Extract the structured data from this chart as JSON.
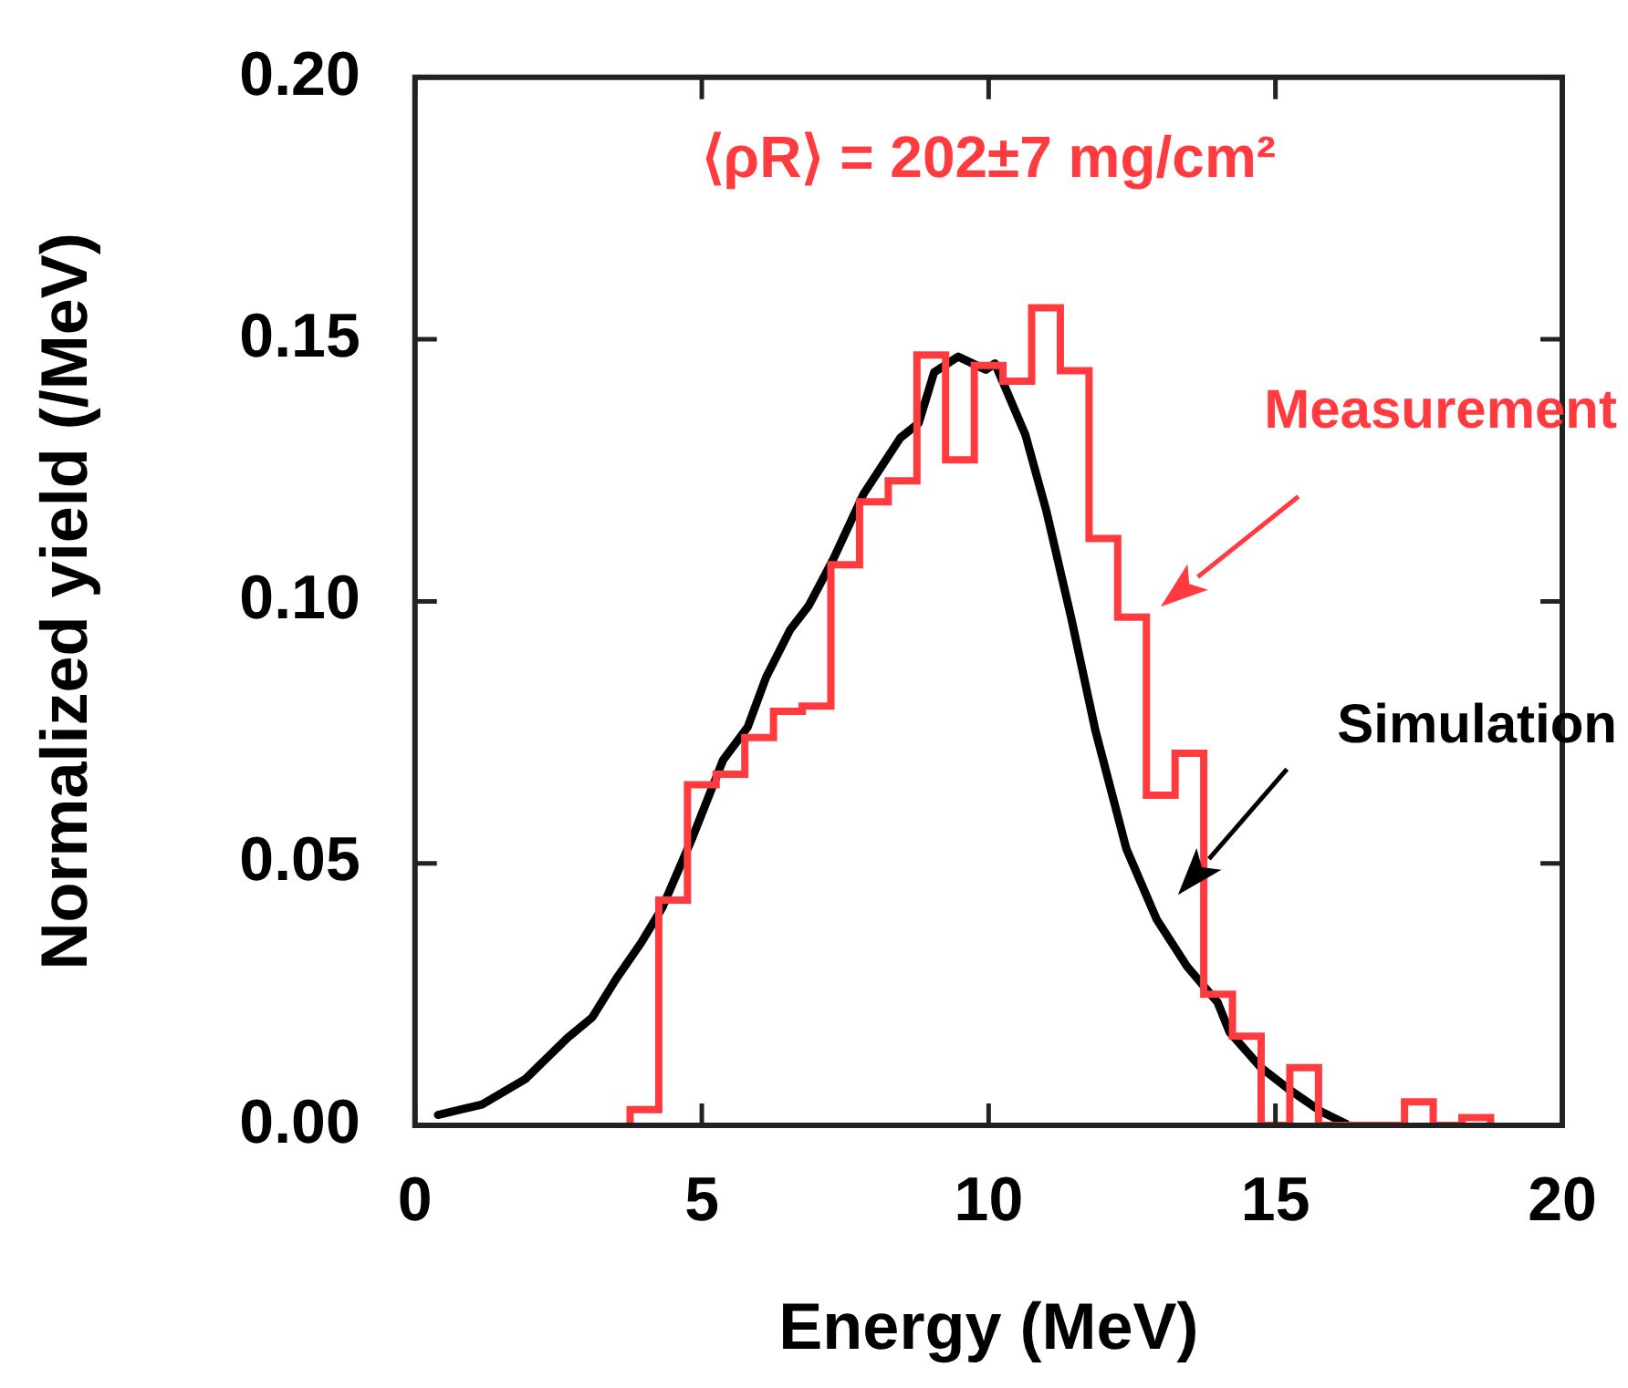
{
  "chart_data": {
    "type": "histogram",
    "xlabel": "Energy (MeV)",
    "ylabel": "Normalized yield (/MeV)",
    "annotations": [
      "⟨ρR⟩ = 202±7 mg/cm²"
    ],
    "series": [
      {
        "type": "histogram",
        "name": "Measurement",
        "color": "#ff3b3f",
        "bins": [
          3.75,
          4.25,
          4.75,
          5.25,
          5.75,
          6.25,
          6.75,
          7.25,
          7.75,
          8.25,
          8.75,
          9.25,
          9.75,
          10.25,
          10.75,
          11.25,
          11.75,
          12.25,
          12.75,
          13.25,
          13.75,
          14.25,
          14.75,
          15.25,
          15.75,
          16.25,
          16.75,
          17.25,
          17.75,
          18.25,
          18.75
        ],
        "values": [
          0.003,
          0.043,
          0.065,
          0.067,
          0.074,
          0.079,
          0.08,
          0.107,
          0.119,
          0.123,
          0.147,
          0.127,
          0.145,
          0.142,
          0.156,
          0.144,
          0.112,
          0.097,
          0.063,
          0.071,
          0.025,
          0.017,
          0,
          0.011,
          0,
          0,
          0,
          0.0045,
          0,
          0.0015
        ]
      },
      {
        "type": "line",
        "name": "Simulation",
        "color": "#000000",
        "x": [
          0.4,
          1.17,
          1.92,
          2.66,
          3.09,
          3.51,
          3.94,
          4.31,
          4.84,
          5.37,
          5.8,
          6.12,
          6.54,
          6.86,
          7.29,
          7.82,
          8.46,
          8.78,
          9.05,
          9.47,
          9.95,
          10.11,
          10.64,
          11.01,
          11.44,
          11.86,
          12.4,
          12.93,
          13.46,
          13.99,
          14.2,
          14.74,
          15.27,
          15.8,
          16.23
        ],
        "values": [
          0.002,
          0.004,
          0.0088,
          0.0167,
          0.0206,
          0.028,
          0.0348,
          0.0415,
          0.055,
          0.0697,
          0.076,
          0.0855,
          0.0946,
          0.0991,
          0.108,
          0.1205,
          0.1312,
          0.134,
          0.1437,
          0.1467,
          0.1442,
          0.1454,
          0.1318,
          0.1171,
          0.0968,
          0.0754,
          0.0528,
          0.0393,
          0.0303,
          0.0235,
          0.0178,
          0.0111,
          0.0066,
          0.0026,
          0.0003
        ]
      }
    ],
    "xlim": [
      0,
      20
    ],
    "xticks": [
      0,
      5,
      10,
      15,
      20
    ],
    "ylim": [
      0,
      0.2
    ],
    "yticks": [
      {
        "value": 0,
        "label": "0.00"
      },
      {
        "value": 0.05,
        "label": "0.05"
      },
      {
        "value": 0.1,
        "label": "0.10"
      },
      {
        "value": 0.15,
        "label": "0.15"
      },
      {
        "value": 0.2,
        "label": "0.20"
      }
    ],
    "grid": false,
    "legend": false,
    "marker": "none",
    "line_style": "solid"
  }
}
